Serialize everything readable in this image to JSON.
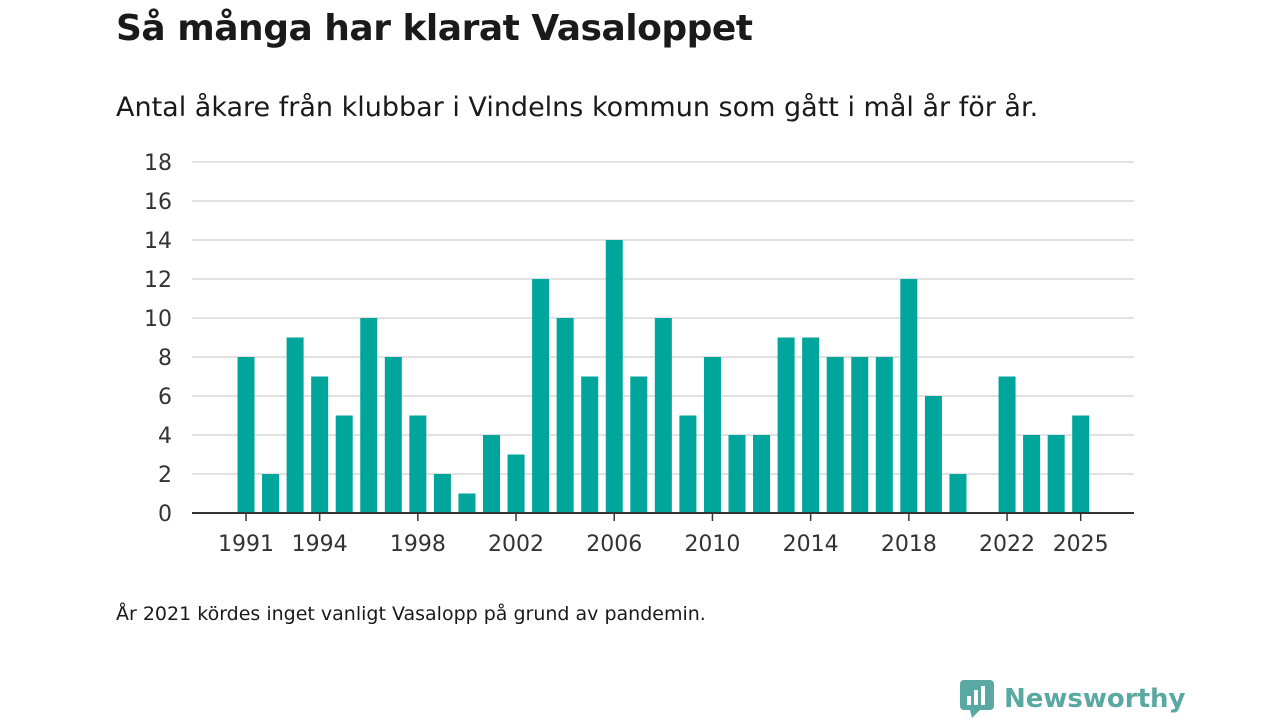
{
  "header": {
    "title": "Så många har klarat Vasaloppet",
    "subtitle": "Antal åkare från klubbar i Vindelns kommun som gått i mål år för år."
  },
  "footnote": "År 2021 kördes inget vanligt Vasalopp på grund av pandemin.",
  "brand": {
    "name": "Newsworthy",
    "color": "#5aa8a2"
  },
  "colors": {
    "bar": "#00a59b",
    "grid": "#d9d9d9",
    "axis": "#333333"
  },
  "chart_data": {
    "type": "bar",
    "title": "Så många har klarat Vasaloppet",
    "xlabel": "",
    "ylabel": "",
    "ylim": [
      0,
      18
    ],
    "yticks": [
      0,
      2,
      4,
      6,
      8,
      10,
      12,
      14,
      16,
      18
    ],
    "grid": true,
    "categories": [
      1991,
      1992,
      1993,
      1994,
      1995,
      1996,
      1997,
      1998,
      1999,
      2000,
      2001,
      2002,
      2003,
      2004,
      2005,
      2006,
      2007,
      2008,
      2009,
      2010,
      2011,
      2012,
      2013,
      2014,
      2015,
      2016,
      2017,
      2018,
      2019,
      2020,
      2021,
      2022,
      2023,
      2024,
      2025
    ],
    "values": [
      8,
      2,
      9,
      7,
      5,
      10,
      8,
      5,
      2,
      1,
      4,
      3,
      12,
      10,
      7,
      14,
      7,
      10,
      5,
      8,
      4,
      4,
      9,
      9,
      8,
      8,
      8,
      12,
      6,
      2,
      0,
      7,
      4,
      4,
      5
    ],
    "xtick_labels": [
      1991,
      1994,
      1998,
      2002,
      2006,
      2010,
      2014,
      2018,
      2022,
      2025
    ]
  }
}
